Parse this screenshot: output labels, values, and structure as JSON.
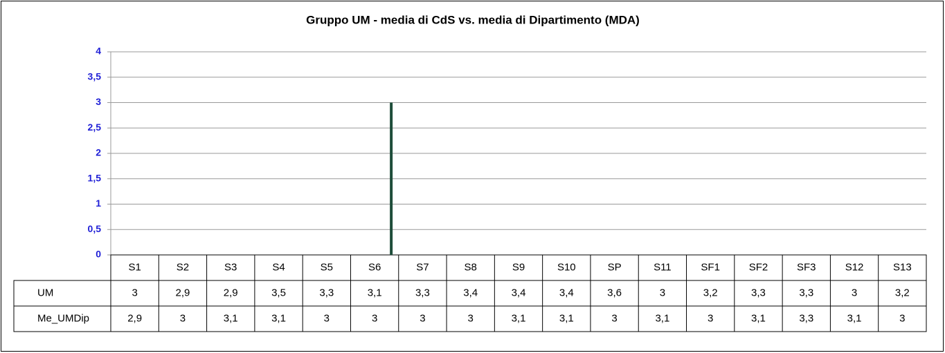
{
  "chart_data": {
    "type": "bar",
    "title": "Gruppo UM - media di CdS vs. media di Dipartimento (MDA)",
    "categories": [
      "S1",
      "S2",
      "S3",
      "S4",
      "S5",
      "S6",
      "S7",
      "S8",
      "S9",
      "S10",
      "SP",
      "S11",
      "SF1",
      "SF2",
      "SF3",
      "S12",
      "S13"
    ],
    "series": [
      {
        "name": "UM",
        "values": [
          3,
          2.9,
          2.9,
          3.5,
          3.3,
          3.1,
          3.3,
          3.4,
          3.4,
          3.4,
          3.6,
          3,
          3.2,
          3.3,
          3.3,
          3,
          3.2
        ],
        "value_labels": [
          "3",
          "2,9",
          "2,9",
          "3,5",
          "3,3",
          "3,1",
          "3,3",
          "3,4",
          "3,4",
          "3,4",
          "3,6",
          "3",
          "3,2",
          "3,3",
          "3,3",
          "3",
          "3,2"
        ]
      },
      {
        "name": "Me_UMDip",
        "color": "#1e4d3a",
        "values": [
          2.9,
          3,
          3.1,
          3.1,
          3,
          3,
          3,
          3,
          3.1,
          3.1,
          3,
          3.1,
          3,
          3.1,
          3.3,
          3.1,
          3
        ],
        "value_labels": [
          "2,9",
          "3",
          "3,1",
          "3,1",
          "3",
          "3",
          "3",
          "3",
          "3,1",
          "3,1",
          "3",
          "3,1",
          "3",
          "3,1",
          "3,3",
          "3,1",
          "3"
        ]
      }
    ],
    "ylim": [
      0,
      4
    ],
    "yticks": [
      0,
      {
        "value": 0.5,
        "label": "0,5"
      },
      1,
      {
        "value": 1.5,
        "label": "1,5"
      },
      2,
      {
        "value": 2.5,
        "label": "2,5"
      },
      3,
      {
        "value": 3.5,
        "label": "3,5"
      },
      4
    ],
    "grid": true
  }
}
